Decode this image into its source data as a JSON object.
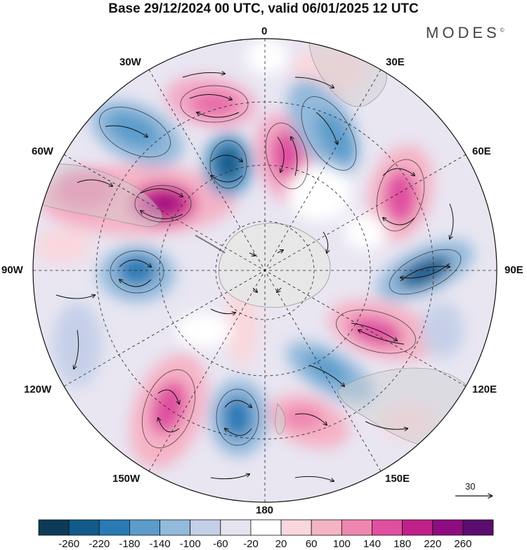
{
  "title": "Base 29/12/2024 00 UTC, valid 06/01/2025 12 UTC",
  "brand": "MODES",
  "brand_mark": "©",
  "meridian_labels": {
    "m0": "0",
    "m30e": "30E",
    "m60e": "60E",
    "m90e": "90E",
    "m120e": "120E",
    "m150e": "150E",
    "m180": "180",
    "m150w": "150W",
    "m120w": "120W",
    "m90w": "90W",
    "m60w": "60W",
    "m30w": "30W"
  },
  "wind_scale_label": "30",
  "colorbar": {
    "ticks": [
      "-260",
      "-220",
      "-180",
      "-140",
      "-100",
      "-60",
      "-20",
      "20",
      "60",
      "100",
      "140",
      "180",
      "220",
      "260"
    ],
    "colors": [
      "#0d3a57",
      "#115a8a",
      "#2a7ab5",
      "#5b9cca",
      "#93b9db",
      "#c5d0e8",
      "#e6e4f1",
      "#ffffff",
      "#f9d7dd",
      "#f5b3c6",
      "#ef86b0",
      "#e04fa0",
      "#c0208a",
      "#8e0d80",
      "#5a0d6e"
    ]
  },
  "icons": [
    "wind-vector-arrow-icon"
  ]
}
